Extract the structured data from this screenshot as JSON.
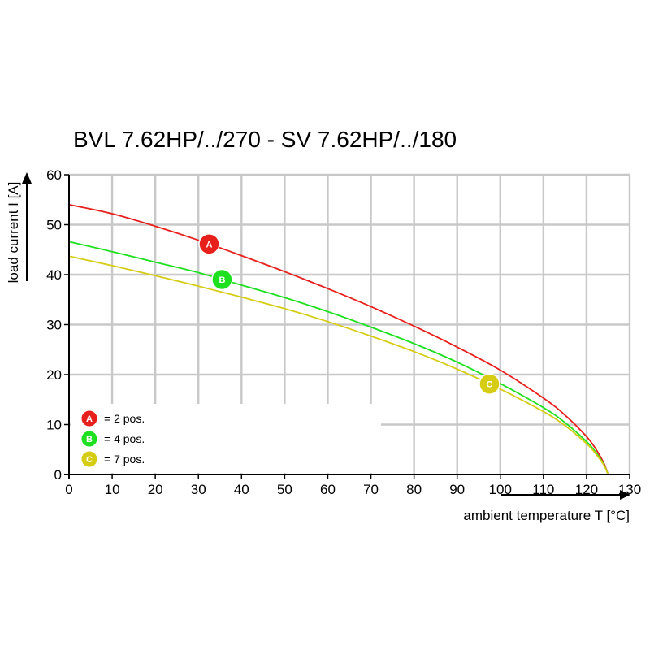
{
  "chart_data": {
    "type": "line",
    "title": "BVL 7.62HP/../270 - SV 7.62HP/../180",
    "xlabel": "ambient temperature T [°C]",
    "ylabel": "load current I [A]",
    "xlim": [
      0,
      130
    ],
    "ylim": [
      0,
      60
    ],
    "x_ticks": [
      0,
      10,
      20,
      30,
      40,
      50,
      60,
      70,
      80,
      90,
      100,
      110,
      120,
      130
    ],
    "y_ticks": [
      0,
      10,
      20,
      30,
      40,
      50,
      60
    ],
    "grid": true,
    "legend_position": "bottom-left",
    "series": [
      {
        "name": "A",
        "label": "= 2 pos.",
        "color": "#e8201c",
        "marker_x": 32.5,
        "x": [
          0,
          10,
          20,
          30,
          40,
          50,
          60,
          70,
          80,
          90,
          100,
          110,
          115,
          120,
          122,
          124,
          125
        ],
        "y": [
          54,
          52.2,
          49.7,
          46.9,
          43.8,
          40.6,
          37.2,
          33.6,
          29.7,
          25.5,
          20.9,
          15.3,
          11.9,
          7.6,
          5.3,
          2.3,
          0
        ]
      },
      {
        "name": "B",
        "label": "= 4 pos.",
        "color": "#1ee01e",
        "marker_x": 35.5,
        "x": [
          0,
          10,
          20,
          30,
          40,
          50,
          60,
          70,
          80,
          90,
          100,
          110,
          115,
          120,
          122,
          124,
          125
        ],
        "y": [
          46.6,
          44.6,
          42.5,
          40.4,
          37.9,
          35.4,
          32.6,
          29.5,
          26.2,
          22.5,
          18.2,
          13.4,
          10.4,
          6.6,
          4.6,
          2.0,
          0
        ]
      },
      {
        "name": "C",
        "label": "= 7 pos.",
        "color": "#d6cc12",
        "marker_x": 97.5,
        "x": [
          0,
          10,
          20,
          30,
          40,
          50,
          60,
          70,
          80,
          90,
          100,
          110,
          115,
          120,
          122,
          124,
          125
        ],
        "y": [
          43.7,
          41.8,
          39.8,
          37.7,
          35.5,
          33.2,
          30.6,
          27.7,
          24.6,
          21.1,
          17.1,
          12.6,
          9.8,
          6.2,
          4.3,
          1.9,
          0
        ]
      }
    ]
  }
}
